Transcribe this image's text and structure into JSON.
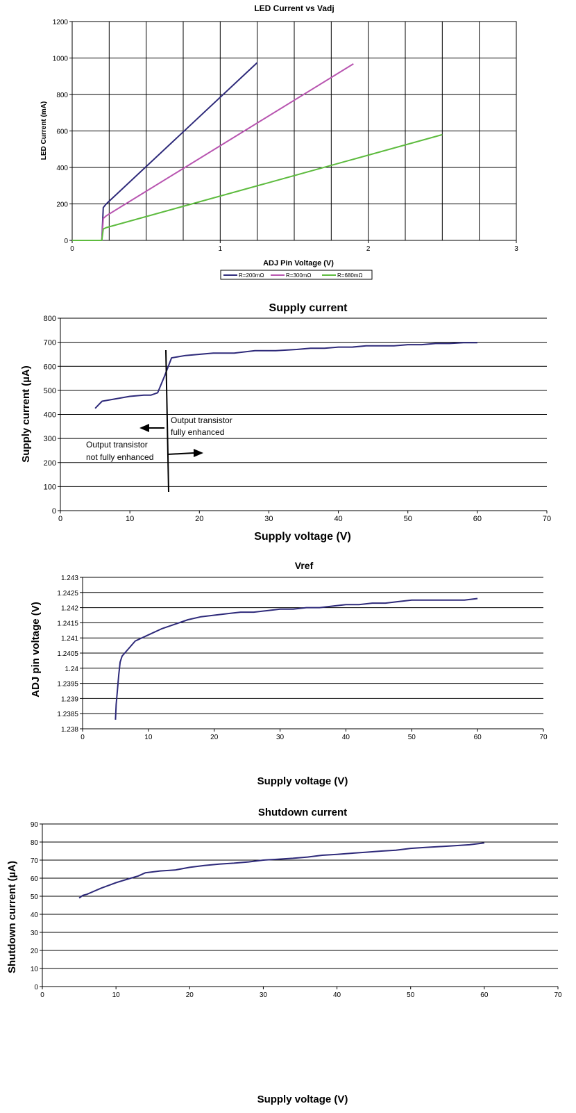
{
  "chart_data": [
    {
      "type": "line",
      "title": "LED Current vs Vadj",
      "xlabel": "ADJ Pin Voltage (V)",
      "ylabel": "LED Current (mA)",
      "xlim": [
        0,
        3
      ],
      "ylim": [
        0,
        1200
      ],
      "x_ticks": [
        "0",
        "1",
        "2",
        "3"
      ],
      "y_ticks": [
        "0",
        "200",
        "400",
        "600",
        "800",
        "1000",
        "1200"
      ],
      "x_grid_step": 0.25,
      "y_grid_step": 200,
      "grid": true,
      "legend": "bottom",
      "series": [
        {
          "name": "R=200mΩ",
          "color": "#2e2a7a",
          "points": [
            [
              0,
              0
            ],
            [
              0.2,
              0
            ],
            [
              0.21,
              180
            ],
            [
              0.23,
              200
            ],
            [
              1.25,
              975
            ]
          ]
        },
        {
          "name": "R=300mΩ",
          "color": "#b855b0",
          "points": [
            [
              0,
              0
            ],
            [
              0.2,
              0
            ],
            [
              0.21,
              120
            ],
            [
              0.23,
              135
            ],
            [
              1.9,
              968
            ]
          ]
        },
        {
          "name": "R=680mΩ",
          "color": "#5dbb3e",
          "points": [
            [
              0,
              0
            ],
            [
              0.2,
              0
            ],
            [
              0.21,
              62
            ],
            [
              0.23,
              70
            ],
            [
              2.5,
              580
            ]
          ]
        }
      ]
    },
    {
      "type": "line",
      "title": "Supply current",
      "xlabel": "Supply voltage (V)",
      "ylabel": "Supply current (µA)",
      "xlim": [
        0,
        70
      ],
      "ylim": [
        0,
        800
      ],
      "x_ticks": [
        "0",
        "10",
        "20",
        "30",
        "40",
        "50",
        "60",
        "70"
      ],
      "y_ticks": [
        "0",
        "100",
        "200",
        "300",
        "400",
        "500",
        "600",
        "700",
        "800"
      ],
      "grid": true,
      "series": [
        {
          "color": "#2e2a7a",
          "points": [
            [
              5,
              425
            ],
            [
              5.5,
              440
            ],
            [
              6,
              455
            ],
            [
              8,
              465
            ],
            [
              10,
              475
            ],
            [
              12,
              480
            ],
            [
              13,
              480
            ],
            [
              14,
              490
            ],
            [
              15,
              560
            ],
            [
              16,
              635
            ],
            [
              18,
              645
            ],
            [
              22,
              655
            ],
            [
              25,
              655
            ],
            [
              28,
              665
            ],
            [
              31,
              665
            ],
            [
              34,
              670
            ],
            [
              36,
              675
            ],
            [
              38,
              675
            ],
            [
              40,
              680
            ],
            [
              42,
              680
            ],
            [
              44,
              685
            ],
            [
              48,
              685
            ],
            [
              50,
              690
            ],
            [
              52,
              690
            ],
            [
              54,
              695
            ],
            [
              56,
              695
            ],
            [
              58,
              698
            ],
            [
              60,
              698
            ]
          ]
        }
      ],
      "annotations": {
        "left_text": [
          "Output transistor",
          "not fully enhanced"
        ],
        "right_text": [
          "Output transistor",
          "fully enhanced"
        ]
      }
    },
    {
      "type": "line",
      "title": "Vref",
      "xlabel": "Supply voltage (V)",
      "ylabel": "ADJ pin voltage (V)",
      "xlim": [
        0,
        70
      ],
      "ylim": [
        1.238,
        1.243
      ],
      "x_ticks": [
        "0",
        "10",
        "20",
        "30",
        "40",
        "50",
        "60",
        "70"
      ],
      "y_ticks": [
        "1.238",
        "1.2385",
        "1.239",
        "1.2395",
        "1.24",
        "1.2405",
        "1.241",
        "1.2415",
        "1.242",
        "1.2425",
        "1.243"
      ],
      "grid": true,
      "series": [
        {
          "color": "#2e2a7a",
          "points": [
            [
              5,
              1.2383
            ],
            [
              5.1,
              1.2388
            ],
            [
              5.3,
              1.2393
            ],
            [
              5.5,
              1.2398
            ],
            [
              5.7,
              1.2402
            ],
            [
              6,
              1.2404
            ],
            [
              8,
              1.2409
            ],
            [
              10,
              1.2411
            ],
            [
              12,
              1.2413
            ],
            [
              14,
              1.24145
            ],
            [
              16,
              1.2416
            ],
            [
              18,
              1.2417
            ],
            [
              20,
              1.24175
            ],
            [
              22,
              1.2418
            ],
            [
              24,
              1.24185
            ],
            [
              26,
              1.24185
            ],
            [
              28,
              1.2419
            ],
            [
              30,
              1.24195
            ],
            [
              32,
              1.24195
            ],
            [
              34,
              1.242
            ],
            [
              36,
              1.242
            ],
            [
              38,
              1.24205
            ],
            [
              40,
              1.2421
            ],
            [
              42,
              1.2421
            ],
            [
              44,
              1.24215
            ],
            [
              46,
              1.24215
            ],
            [
              48,
              1.2422
            ],
            [
              50,
              1.24225
            ],
            [
              52,
              1.24225
            ],
            [
              54,
              1.24225
            ],
            [
              56,
              1.24225
            ],
            [
              58,
              1.24225
            ],
            [
              60,
              1.2423
            ]
          ]
        }
      ]
    },
    {
      "type": "line",
      "title": "Shutdown current",
      "xlabel": "Supply voltage (V)",
      "ylabel": "Shutdown current (µA)",
      "xlim": [
        0,
        70
      ],
      "ylim": [
        0,
        90
      ],
      "x_ticks": [
        "0",
        "10",
        "20",
        "30",
        "40",
        "50",
        "60",
        "70"
      ],
      "y_ticks": [
        "0",
        "10",
        "20",
        "30",
        "40",
        "50",
        "60",
        "70",
        "80",
        "90"
      ],
      "grid": true,
      "series": [
        {
          "color": "#2e2a7a",
          "points": [
            [
              5,
              49
            ],
            [
              5.5,
              50.5
            ],
            [
              6,
              51
            ],
            [
              8,
              54.5
            ],
            [
              10,
              57.5
            ],
            [
              12,
              60
            ],
            [
              13,
              61.2
            ],
            [
              14,
              63
            ],
            [
              16,
              64
            ],
            [
              18,
              64.5
            ],
            [
              20,
              66
            ],
            [
              22,
              67
            ],
            [
              24,
              67.8
            ],
            [
              26,
              68.3
            ],
            [
              28,
              69
            ],
            [
              30,
              70
            ],
            [
              32,
              70.5
            ],
            [
              34,
              71
            ],
            [
              36,
              71.7
            ],
            [
              38,
              72.7
            ],
            [
              40,
              73.2
            ],
            [
              42,
              73.8
            ],
            [
              44,
              74.4
            ],
            [
              46,
              75
            ],
            [
              48,
              75.5
            ],
            [
              50,
              76.5
            ],
            [
              52,
              77
            ],
            [
              54,
              77.5
            ],
            [
              56,
              78
            ],
            [
              58,
              78.5
            ],
            [
              60,
              79.5
            ]
          ]
        }
      ]
    }
  ]
}
